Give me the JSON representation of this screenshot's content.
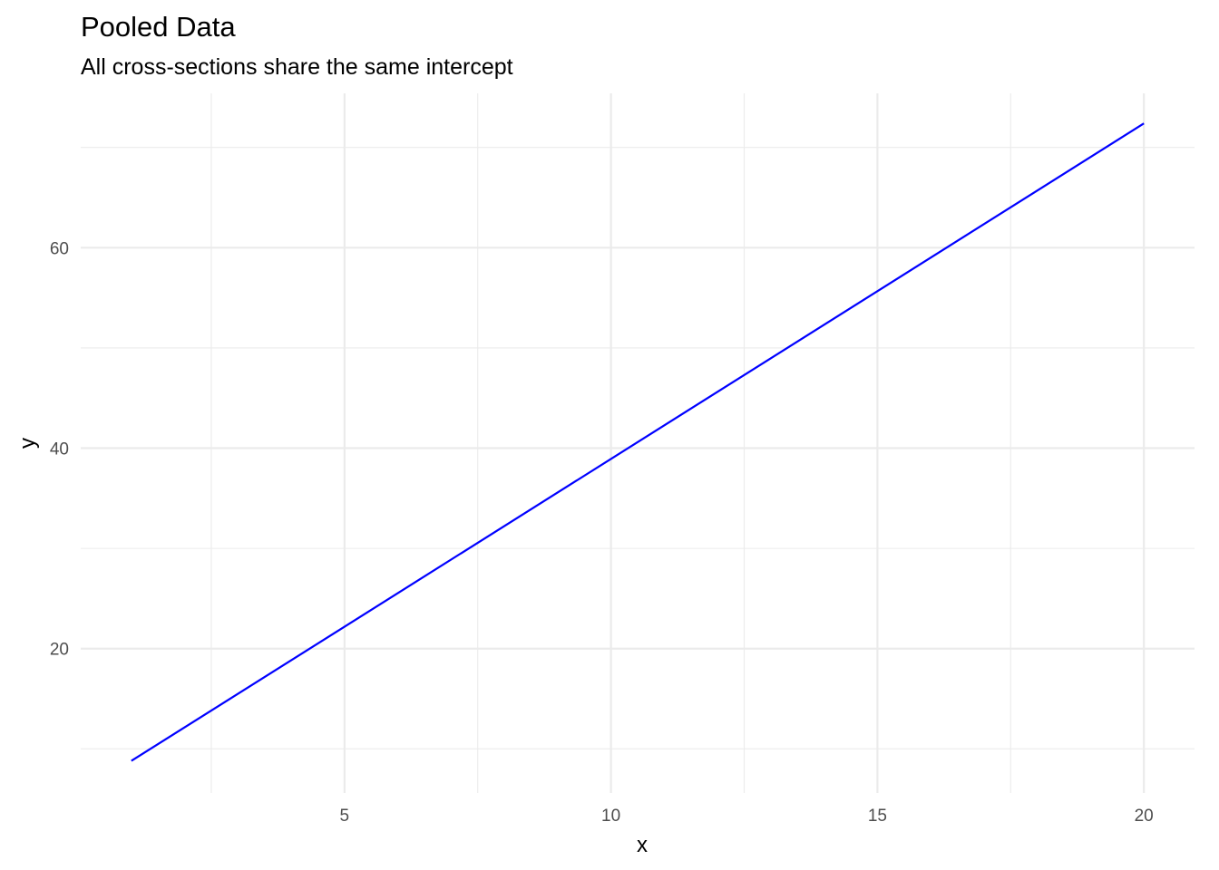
{
  "chart_data": {
    "type": "line",
    "title": "Pooled Data",
    "subtitle": "All cross-sections share the same intercept",
    "xlabel": "x",
    "ylabel": "y",
    "xlim": [
      0.05,
      20.95
    ],
    "ylim": [
      5.6,
      75.4
    ],
    "x_ticks": [
      5,
      10,
      15,
      20
    ],
    "x_tick_labels": [
      "5",
      "10",
      "15",
      "20"
    ],
    "y_ticks": [
      20,
      40,
      60
    ],
    "y_tick_labels": [
      "20",
      "40",
      "60"
    ],
    "x_minor": [
      2.5,
      7.5,
      12.5,
      17.5
    ],
    "y_minor": [
      10,
      30,
      50,
      70
    ],
    "grid": true,
    "legend": "none",
    "series": [
      {
        "color": "#0000ff",
        "x": [
          1,
          20
        ],
        "y": [
          8.8,
          72.4
        ]
      }
    ]
  }
}
